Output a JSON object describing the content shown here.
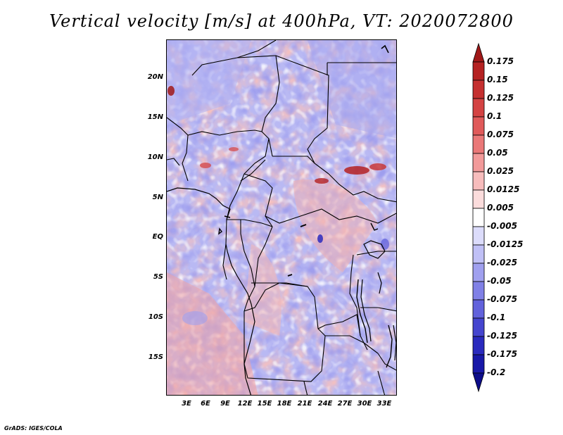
{
  "title": "Vertical velocity [m/s] at 400hPa, VT: 2020072800",
  "footer": "GrADS: IGES/COLA",
  "map": {
    "lat_labels": [
      "20N",
      "15N",
      "10N",
      "5N",
      "EQ",
      "5S",
      "10S",
      "15S"
    ],
    "lon_labels": [
      "3E",
      "6E",
      "9E",
      "12E",
      "15E",
      "18E",
      "21E",
      "24E",
      "27E",
      "30E",
      "33E"
    ]
  },
  "colorbar": {
    "labels": [
      "0.175",
      "0.15",
      "0.125",
      "0.1",
      "0.075",
      "0.05",
      "0.025",
      "0.0125",
      "0.005",
      "-0.005",
      "-0.0125",
      "-0.025",
      "-0.05",
      "-0.075",
      "-0.1",
      "-0.125",
      "-0.175",
      "-0.2"
    ],
    "colors": [
      "#a01818",
      "#b52222",
      "#c53030",
      "#d44343",
      "#e05a5a",
      "#ea7878",
      "#f29a9a",
      "#f7bcbc",
      "#fbdcdc",
      "#ffffff",
      "#dcdcfb",
      "#c0c0f6",
      "#a0a0ef",
      "#8080e6",
      "#6262dc",
      "#4545cf",
      "#2a2abe",
      "#1818a8",
      "#0d0d8a"
    ]
  }
}
